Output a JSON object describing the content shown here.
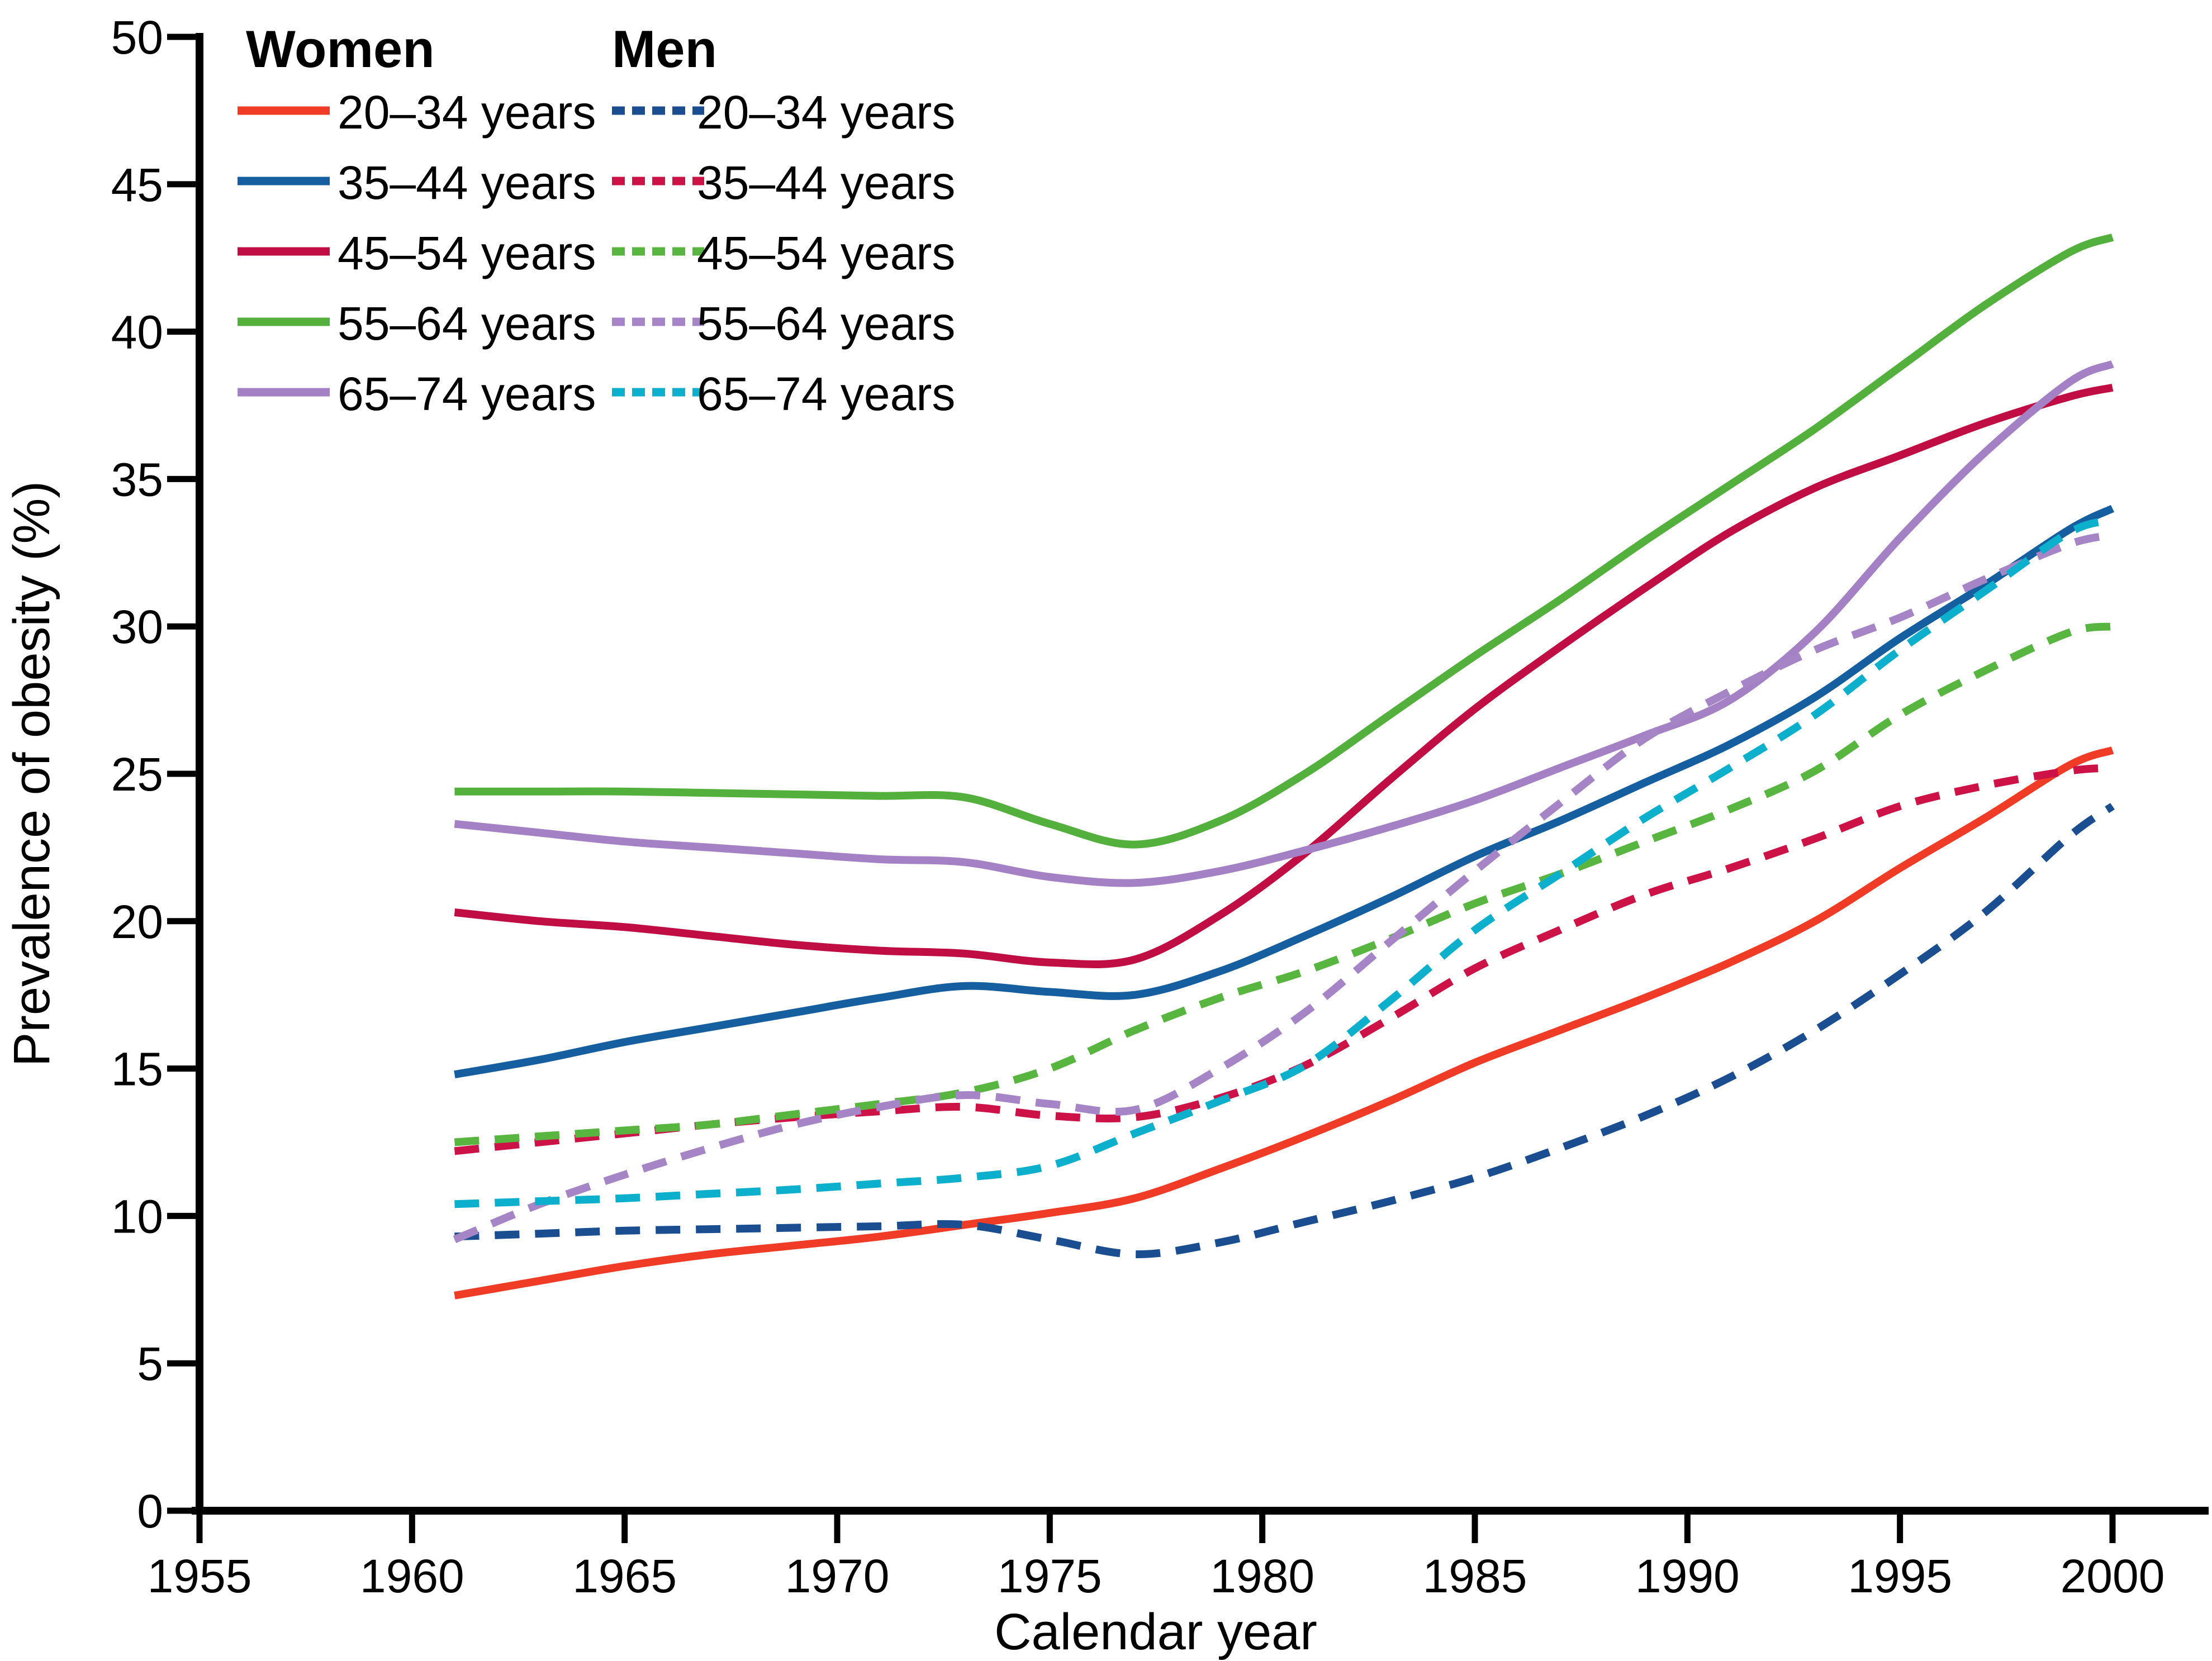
{
  "chart_data": {
    "type": "line",
    "title": "",
    "xlabel": "Calendar year",
    "ylabel": "Prevalence of obesity (%)",
    "xlim": [
      1955,
      2000
    ],
    "ylim": [
      0,
      50
    ],
    "x_ticks": [
      1955,
      1960,
      1965,
      1970,
      1975,
      1980,
      1985,
      1990,
      1995,
      2000
    ],
    "y_ticks": [
      0,
      5,
      10,
      15,
      20,
      25,
      30,
      35,
      40,
      45,
      50
    ],
    "grid": false,
    "legend_position": "top-left",
    "legend_columns": [
      "Women",
      "Men"
    ],
    "line_styles": {
      "Women": "solid",
      "Men": "dashed"
    },
    "years": [
      1961,
      1963,
      1965,
      1967,
      1969,
      1971,
      1973,
      1975,
      1977,
      1979,
      1981,
      1983,
      1985,
      1987,
      1989,
      1991,
      1993,
      1995,
      1997,
      1999,
      2000
    ],
    "series": [
      {
        "group": "Women",
        "label": "20–34 years",
        "color": "#f03c26",
        "dashed": false,
        "values": [
          7.3,
          7.8,
          8.3,
          8.7,
          9.0,
          9.3,
          9.7,
          10.1,
          10.6,
          11.6,
          12.7,
          13.9,
          15.2,
          16.3,
          17.4,
          18.6,
          20.0,
          21.8,
          23.5,
          25.3,
          25.8
        ]
      },
      {
        "group": "Women",
        "label": "35–44 years",
        "color": "#155fa0",
        "dashed": false,
        "values": [
          14.8,
          15.3,
          15.9,
          16.4,
          16.9,
          17.4,
          17.8,
          17.6,
          17.5,
          18.3,
          19.5,
          20.8,
          22.2,
          23.4,
          24.7,
          26.0,
          27.6,
          29.6,
          31.4,
          33.3,
          34.0
        ]
      },
      {
        "group": "Women",
        "label": "45–54 years",
        "color": "#c00d44",
        "dashed": false,
        "values": [
          20.3,
          20.0,
          19.8,
          19.5,
          19.2,
          19.0,
          18.9,
          18.6,
          18.7,
          20.2,
          22.3,
          24.8,
          27.2,
          29.3,
          31.3,
          33.2,
          34.7,
          35.8,
          36.9,
          37.8,
          38.1
        ]
      },
      {
        "group": "Women",
        "label": "55–64 years",
        "color": "#54b03c",
        "dashed": false,
        "values": [
          24.4,
          24.4,
          24.4,
          24.35,
          24.3,
          24.25,
          24.2,
          23.3,
          22.6,
          23.4,
          25.0,
          27.0,
          29.0,
          30.9,
          32.9,
          34.8,
          36.7,
          38.8,
          40.9,
          42.7,
          43.2
        ]
      },
      {
        "group": "Women",
        "label": "65–74 years",
        "color": "#a481c4",
        "dashed": false,
        "values": [
          23.3,
          23.0,
          22.7,
          22.5,
          22.3,
          22.1,
          22.0,
          21.5,
          21.3,
          21.7,
          22.4,
          23.2,
          24.1,
          25.2,
          26.3,
          27.5,
          29.8,
          33.0,
          35.9,
          38.3,
          38.9
        ]
      },
      {
        "group": "Men",
        "label": "20–34 years",
        "color": "#1b4d91",
        "dashed": true,
        "values": [
          9.3,
          9.4,
          9.5,
          9.55,
          9.6,
          9.65,
          9.7,
          9.2,
          8.7,
          9.1,
          9.8,
          10.5,
          11.3,
          12.3,
          13.4,
          14.7,
          16.3,
          18.2,
          20.3,
          22.9,
          23.9
        ]
      },
      {
        "group": "Men",
        "label": "35–44 years",
        "color": "#cc1247",
        "dashed": true,
        "values": [
          12.2,
          12.5,
          12.8,
          13.1,
          13.35,
          13.55,
          13.7,
          13.4,
          13.35,
          14.0,
          15.1,
          16.7,
          18.4,
          19.7,
          20.9,
          21.8,
          22.8,
          23.9,
          24.6,
          25.1,
          25.2
        ]
      },
      {
        "group": "Men",
        "label": "45–54 years",
        "color": "#58b640",
        "dashed": true,
        "values": [
          12.5,
          12.7,
          12.9,
          13.1,
          13.45,
          13.8,
          14.2,
          15.0,
          16.3,
          17.4,
          18.3,
          19.4,
          20.6,
          21.6,
          22.7,
          23.8,
          25.1,
          27.0,
          28.5,
          29.8,
          30.0
        ]
      },
      {
        "group": "Men",
        "label": "55–64 years",
        "color": "#a585c6",
        "dashed": true,
        "values": [
          9.2,
          10.4,
          11.4,
          12.3,
          13.1,
          13.7,
          14.1,
          13.8,
          13.6,
          15.0,
          16.9,
          19.3,
          21.7,
          24.0,
          26.2,
          27.8,
          29.2,
          30.3,
          31.6,
          32.8,
          33.1
        ]
      },
      {
        "group": "Men",
        "label": "65–74 years",
        "color": "#0cafcc",
        "dashed": true,
        "values": [
          10.4,
          10.5,
          10.6,
          10.75,
          10.9,
          11.1,
          11.3,
          11.7,
          12.8,
          13.9,
          15.1,
          17.3,
          19.7,
          21.6,
          23.5,
          25.2,
          27.0,
          29.2,
          31.2,
          33.2,
          33.6
        ]
      }
    ]
  }
}
